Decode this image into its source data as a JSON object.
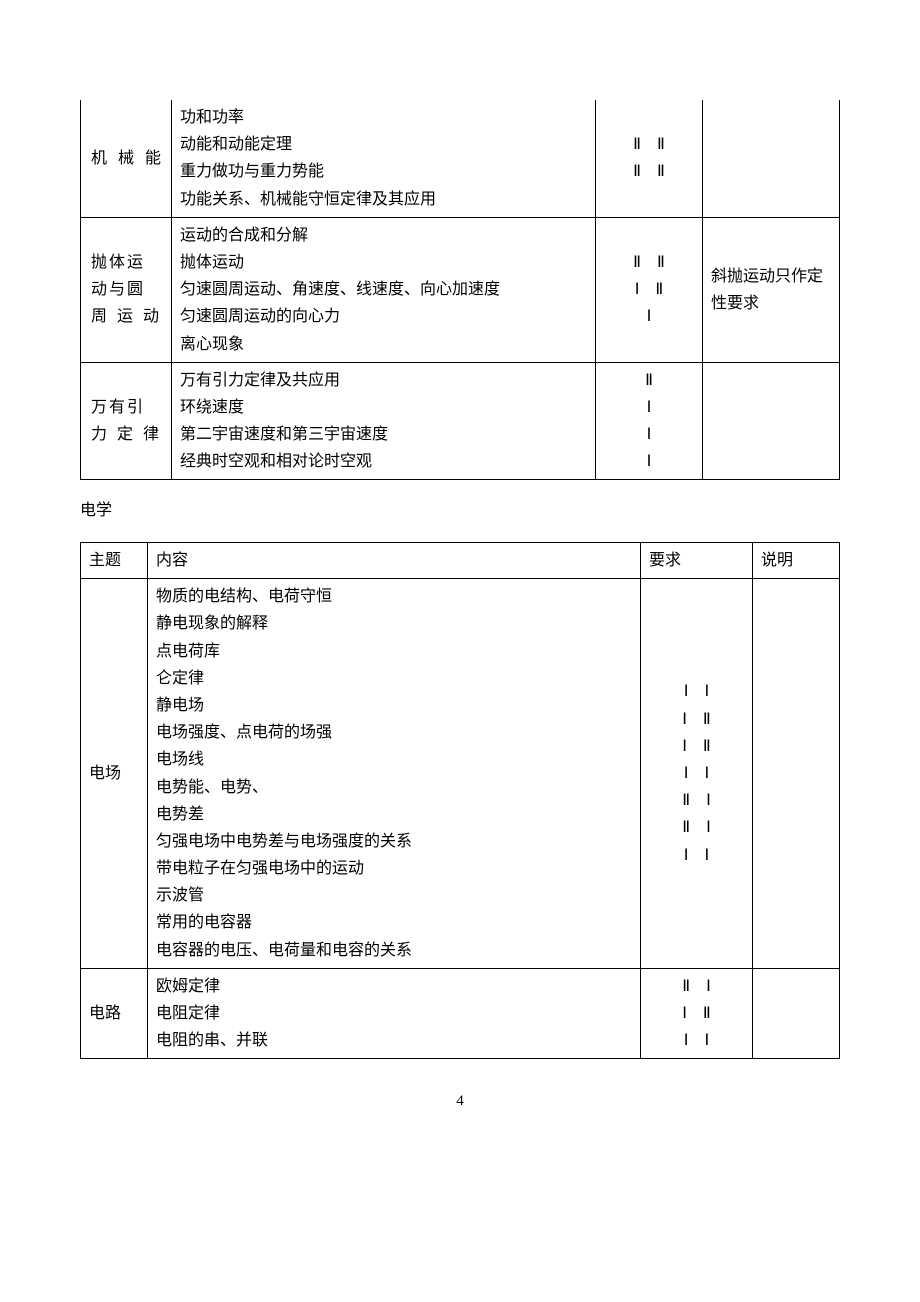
{
  "table1": {
    "rows": [
      {
        "topic": "机械能",
        "content": "功和功率\n动能和动能定理\n重力做功与重力势能\n功能关系、机械能守恒定律及其应用",
        "req": "Ⅱ　Ⅱ\nⅡ　Ⅱ",
        "note": ""
      },
      {
        "topic": "抛体运动与圆周运动",
        "content": "运动的合成和分解\n抛体运动\n匀速圆周运动、角速度、线速度、向心加速度\n匀速圆周运动的向心力\n离心现象",
        "req": "Ⅱ　Ⅱ\nⅠ　Ⅱ\nⅠ",
        "note": "斜抛运动只作定性要求"
      },
      {
        "topic": "万有引力定律",
        "content": "万有引力定律及共应用\n环绕速度\n第二宇宙速度和第三宇宙速度\n经典时空观和相对论时空观",
        "req": "Ⅱ\nⅠ\nⅠ\nⅠ",
        "note": ""
      }
    ]
  },
  "section_heading": "电学",
  "table2": {
    "header": {
      "topic": "主题",
      "content": "内容",
      "req": "要求",
      "note": "说明"
    },
    "rows": [
      {
        "topic": "电场",
        "content": "物质的电结构、电荷守恒\n静电现象的解释\n点电荷库\n仑定律\n静电场\n电场强度、点电荷的场强\n电场线\n电势能、电势、\n电势差\n匀强电场中电势差与电场强度的关系\n带电粒子在匀强电场中的运动\n示波管\n常用的电容器\n电容器的电压、电荷量和电容的关系",
        "req": "Ⅰ　Ⅰ\nⅠ　Ⅱ\nⅠ　Ⅱ\nⅠ　Ⅰ\nⅡ　Ⅰ\nⅡ　Ⅰ\nⅠ　Ⅰ",
        "note": ""
      },
      {
        "topic": "电路",
        "content": "欧姆定律\n电阻定律\n电阻的串、并联",
        "req": "Ⅱ　Ⅰ\nⅠ　Ⅱ\nⅠ　Ⅰ",
        "note": ""
      }
    ]
  },
  "page_number": "4"
}
